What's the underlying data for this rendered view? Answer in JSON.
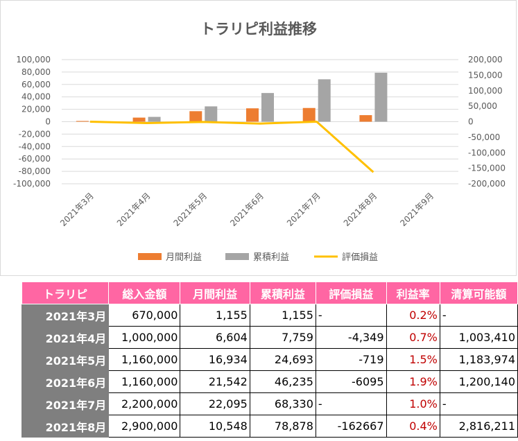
{
  "chart_data": {
    "type": "bar",
    "title": "トラリピ利益推移",
    "categories": [
      "2021年3月",
      "2021年4月",
      "2021年5月",
      "2021年6月",
      "2021年7月",
      "2021年8月",
      "2021年9月"
    ],
    "series": [
      {
        "name": "月間利益",
        "kind": "bar",
        "axis": "left",
        "color": "#ed7d31",
        "values": [
          1155,
          6604,
          16934,
          21542,
          22095,
          10548,
          null
        ]
      },
      {
        "name": "累積利益",
        "kind": "bar",
        "axis": "left",
        "color": "#a5a5a5",
        "values": [
          1155,
          7759,
          24693,
          46235,
          68330,
          78878,
          null
        ]
      },
      {
        "name": "評価損益",
        "kind": "line",
        "axis": "right",
        "color": "#ffc000",
        "values": [
          0,
          -4349,
          -719,
          -6095,
          0,
          -162667,
          null
        ]
      }
    ],
    "y_left": {
      "min": -100000,
      "max": 100000,
      "step": 20000,
      "ticks": [
        "100,000",
        "80,000",
        "60,000",
        "40,000",
        "20,000",
        "0",
        "-20,000",
        "-40,000",
        "-60,000",
        "-80,000",
        "-100,000"
      ]
    },
    "y_right": {
      "min": -200000,
      "max": 200000,
      "step": 50000,
      "ticks": [
        "200,000",
        "150,000",
        "100,000",
        "50,000",
        "0",
        "-50,000",
        "-100,000",
        "-150,000",
        "-200,000"
      ]
    },
    "grid": true,
    "legend_position": "bottom"
  },
  "table": {
    "headers": [
      "トラリピ",
      "総入金額",
      "月間利益",
      "累積利益",
      "評価損益",
      "利益率",
      "清算可能額"
    ],
    "rows": [
      {
        "month": "2021年3月",
        "deposit": "670,000",
        "monthly": "1,155",
        "cumulative": "1,155",
        "unrealized": "-",
        "rate": "0.2%",
        "liquidation": "-"
      },
      {
        "month": "2021年4月",
        "deposit": "1,000,000",
        "monthly": "6,604",
        "cumulative": "7,759",
        "unrealized": "-4,349",
        "rate": "0.7%",
        "liquidation": "1,003,410"
      },
      {
        "month": "2021年5月",
        "deposit": "1,160,000",
        "monthly": "16,934",
        "cumulative": "24,693",
        "unrealized": "-719",
        "rate": "1.5%",
        "liquidation": "1,183,974"
      },
      {
        "month": "2021年6月",
        "deposit": "1,160,000",
        "monthly": "21,542",
        "cumulative": "46,235",
        "unrealized": "-6095",
        "rate": "1.9%",
        "liquidation": "1,200,140"
      },
      {
        "month": "2021年7月",
        "deposit": "2,200,000",
        "monthly": "22,095",
        "cumulative": "68,330",
        "unrealized": "-",
        "rate": "1.0%",
        "liquidation": "-"
      },
      {
        "month": "2021年8月",
        "deposit": "2,900,000",
        "monthly": "10,548",
        "cumulative": "78,878",
        "unrealized": "-162667",
        "rate": "0.4%",
        "liquidation": "2,816,211"
      }
    ]
  },
  "colors": {
    "header_bg": "#ff66a3",
    "row_header_bg": "#7f7f7f",
    "rate_text": "#c00000"
  }
}
